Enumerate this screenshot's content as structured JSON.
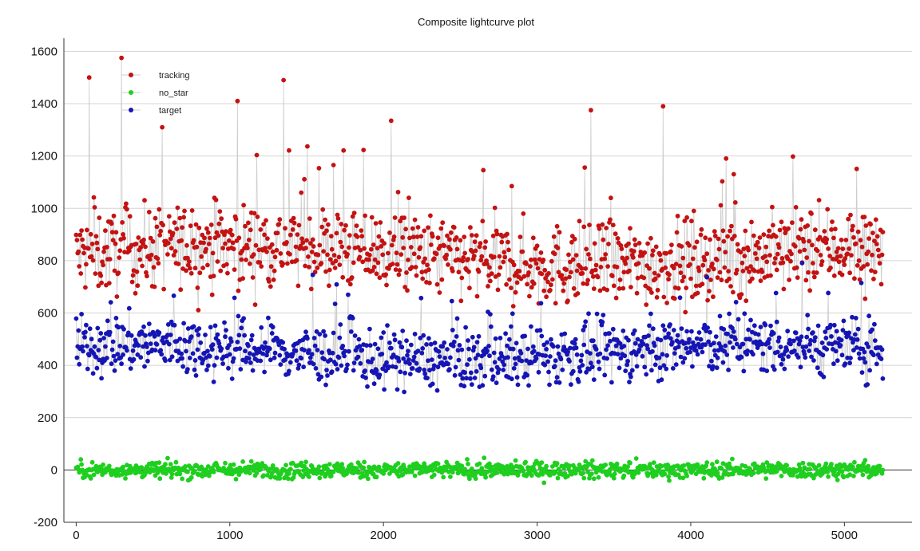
{
  "chart_data": {
    "type": "scatter",
    "title": "Composite lightcurve plot",
    "xlabel": "",
    "ylabel": "",
    "xlim": [
      -80,
      5440
    ],
    "ylim": [
      -200,
      1650
    ],
    "x_ticks": [
      0,
      1000,
      2000,
      3000,
      4000,
      5000
    ],
    "y_ticks": [
      -200,
      0,
      200,
      400,
      600,
      800,
      1000,
      1200,
      1400,
      1600
    ],
    "grid": "horizontal",
    "zero_line": true,
    "legend_position": "top-left",
    "n_points": 5250,
    "series": [
      {
        "name": "tracking",
        "color": "#c41212",
        "connected": true,
        "line_color": "#c8c8c8",
        "mean": 820,
        "spread": 140,
        "min": 520,
        "max": 1580,
        "notable_peaks": [
          [
            85,
            1500
          ],
          [
            295,
            1575
          ],
          [
            560,
            1310
          ],
          [
            1050,
            1410
          ],
          [
            1350,
            1490
          ],
          [
            2050,
            1335
          ],
          [
            3350,
            1375
          ],
          [
            3820,
            1390
          ]
        ]
      },
      {
        "name": "no_star",
        "color": "#1fcf1f",
        "connected": false,
        "mean": 0,
        "spread": 28,
        "min": -120,
        "max": 135
      },
      {
        "name": "target",
        "color": "#1515b5",
        "connected": true,
        "line_color": "#c8c8c8",
        "mean": 450,
        "spread": 100,
        "min": 150,
        "max": 820
      }
    ]
  }
}
